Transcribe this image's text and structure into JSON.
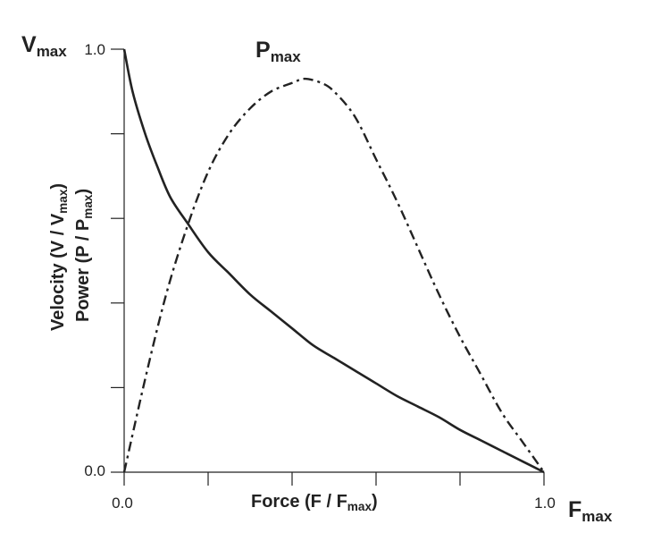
{
  "chart_data": {
    "type": "line",
    "x_range": [
      0,
      1
    ],
    "y_range": [
      0,
      1
    ],
    "x_tick_labels": [
      "0.0",
      "1.0"
    ],
    "y_tick_labels": [
      "0.0",
      "1.0"
    ],
    "xlabel": {
      "main": "Force (F / F",
      "sub": "max",
      "close": ")"
    },
    "ylabel_line1": {
      "main": "Velocity (V / V",
      "sub": "max",
      "close": ")"
    },
    "ylabel_line2": {
      "main": "Power (P / P",
      "sub": "max",
      "close": ")"
    },
    "annotations": {
      "vmax": {
        "main": "V",
        "sub": "max"
      },
      "fmax": {
        "main": "F",
        "sub": "max"
      },
      "pmax": {
        "main": "P",
        "sub": "max"
      }
    },
    "grid": false,
    "series": [
      {
        "style": "solid",
        "color": "#222222",
        "x": [
          0.0,
          0.02,
          0.05,
          0.08,
          0.11,
          0.15,
          0.2,
          0.25,
          0.3,
          0.35,
          0.4,
          0.45,
          0.5,
          0.55,
          0.6,
          0.65,
          0.7,
          0.75,
          0.8,
          0.85,
          0.9,
          0.95,
          1.0
        ],
        "y": [
          1.0,
          0.9,
          0.8,
          0.72,
          0.65,
          0.59,
          0.52,
          0.47,
          0.42,
          0.38,
          0.34,
          0.3,
          0.27,
          0.24,
          0.21,
          0.18,
          0.155,
          0.13,
          0.1,
          0.075,
          0.05,
          0.025,
          0.0
        ]
      },
      {
        "style": "dash-dot",
        "color": "#222222",
        "x": [
          0.0,
          0.05,
          0.1,
          0.15,
          0.2,
          0.25,
          0.3,
          0.35,
          0.4,
          0.43,
          0.47,
          0.5,
          0.55,
          0.6,
          0.65,
          0.7,
          0.75,
          0.8,
          0.85,
          0.9,
          0.95,
          1.0
        ],
        "y": [
          0.0,
          0.22,
          0.42,
          0.58,
          0.71,
          0.8,
          0.86,
          0.9,
          0.92,
          0.93,
          0.92,
          0.9,
          0.84,
          0.74,
          0.64,
          0.53,
          0.42,
          0.32,
          0.23,
          0.14,
          0.07,
          0.0
        ]
      }
    ]
  }
}
